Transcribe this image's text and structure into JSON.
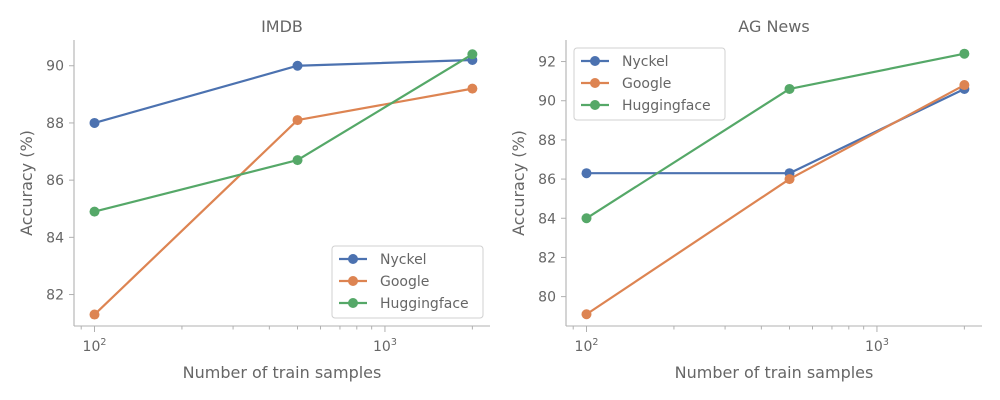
{
  "chart_data": [
    {
      "type": "line",
      "title": "IMDB",
      "xlabel": "Number of train samples",
      "ylabel": "Accuracy (%)",
      "xscale": "log",
      "x": [
        100,
        500,
        2000
      ],
      "xlim": [
        85,
        2300
      ],
      "ylim": [
        80.9,
        90.9
      ],
      "yticks": [
        82,
        84,
        86,
        88,
        90
      ],
      "legend_position": "lower-right",
      "series": [
        {
          "name": "Nyckel",
          "color": "#4c72b0",
          "values": [
            88.0,
            90.0,
            90.2
          ]
        },
        {
          "name": "Google",
          "color": "#dd8452",
          "values": [
            81.3,
            88.1,
            89.2
          ]
        },
        {
          "name": "Huggingface",
          "color": "#55a868",
          "values": [
            84.9,
            86.7,
            90.4
          ]
        }
      ]
    },
    {
      "type": "line",
      "title": "AG News",
      "xlabel": "Number of train samples",
      "ylabel": "Accuracy (%)",
      "xscale": "log",
      "x": [
        100,
        500,
        2000
      ],
      "xlim": [
        85,
        2300
      ],
      "ylim": [
        78.5,
        93.1
      ],
      "yticks": [
        80,
        82,
        84,
        86,
        88,
        90,
        92
      ],
      "legend_position": "upper-left",
      "series": [
        {
          "name": "Nyckel",
          "color": "#4c72b0",
          "values": [
            86.3,
            86.3,
            90.6
          ]
        },
        {
          "name": "Google",
          "color": "#dd8452",
          "values": [
            79.1,
            86.0,
            90.8
          ]
        },
        {
          "name": "Huggingface",
          "color": "#55a868",
          "values": [
            84.0,
            90.6,
            92.4
          ]
        }
      ]
    }
  ]
}
